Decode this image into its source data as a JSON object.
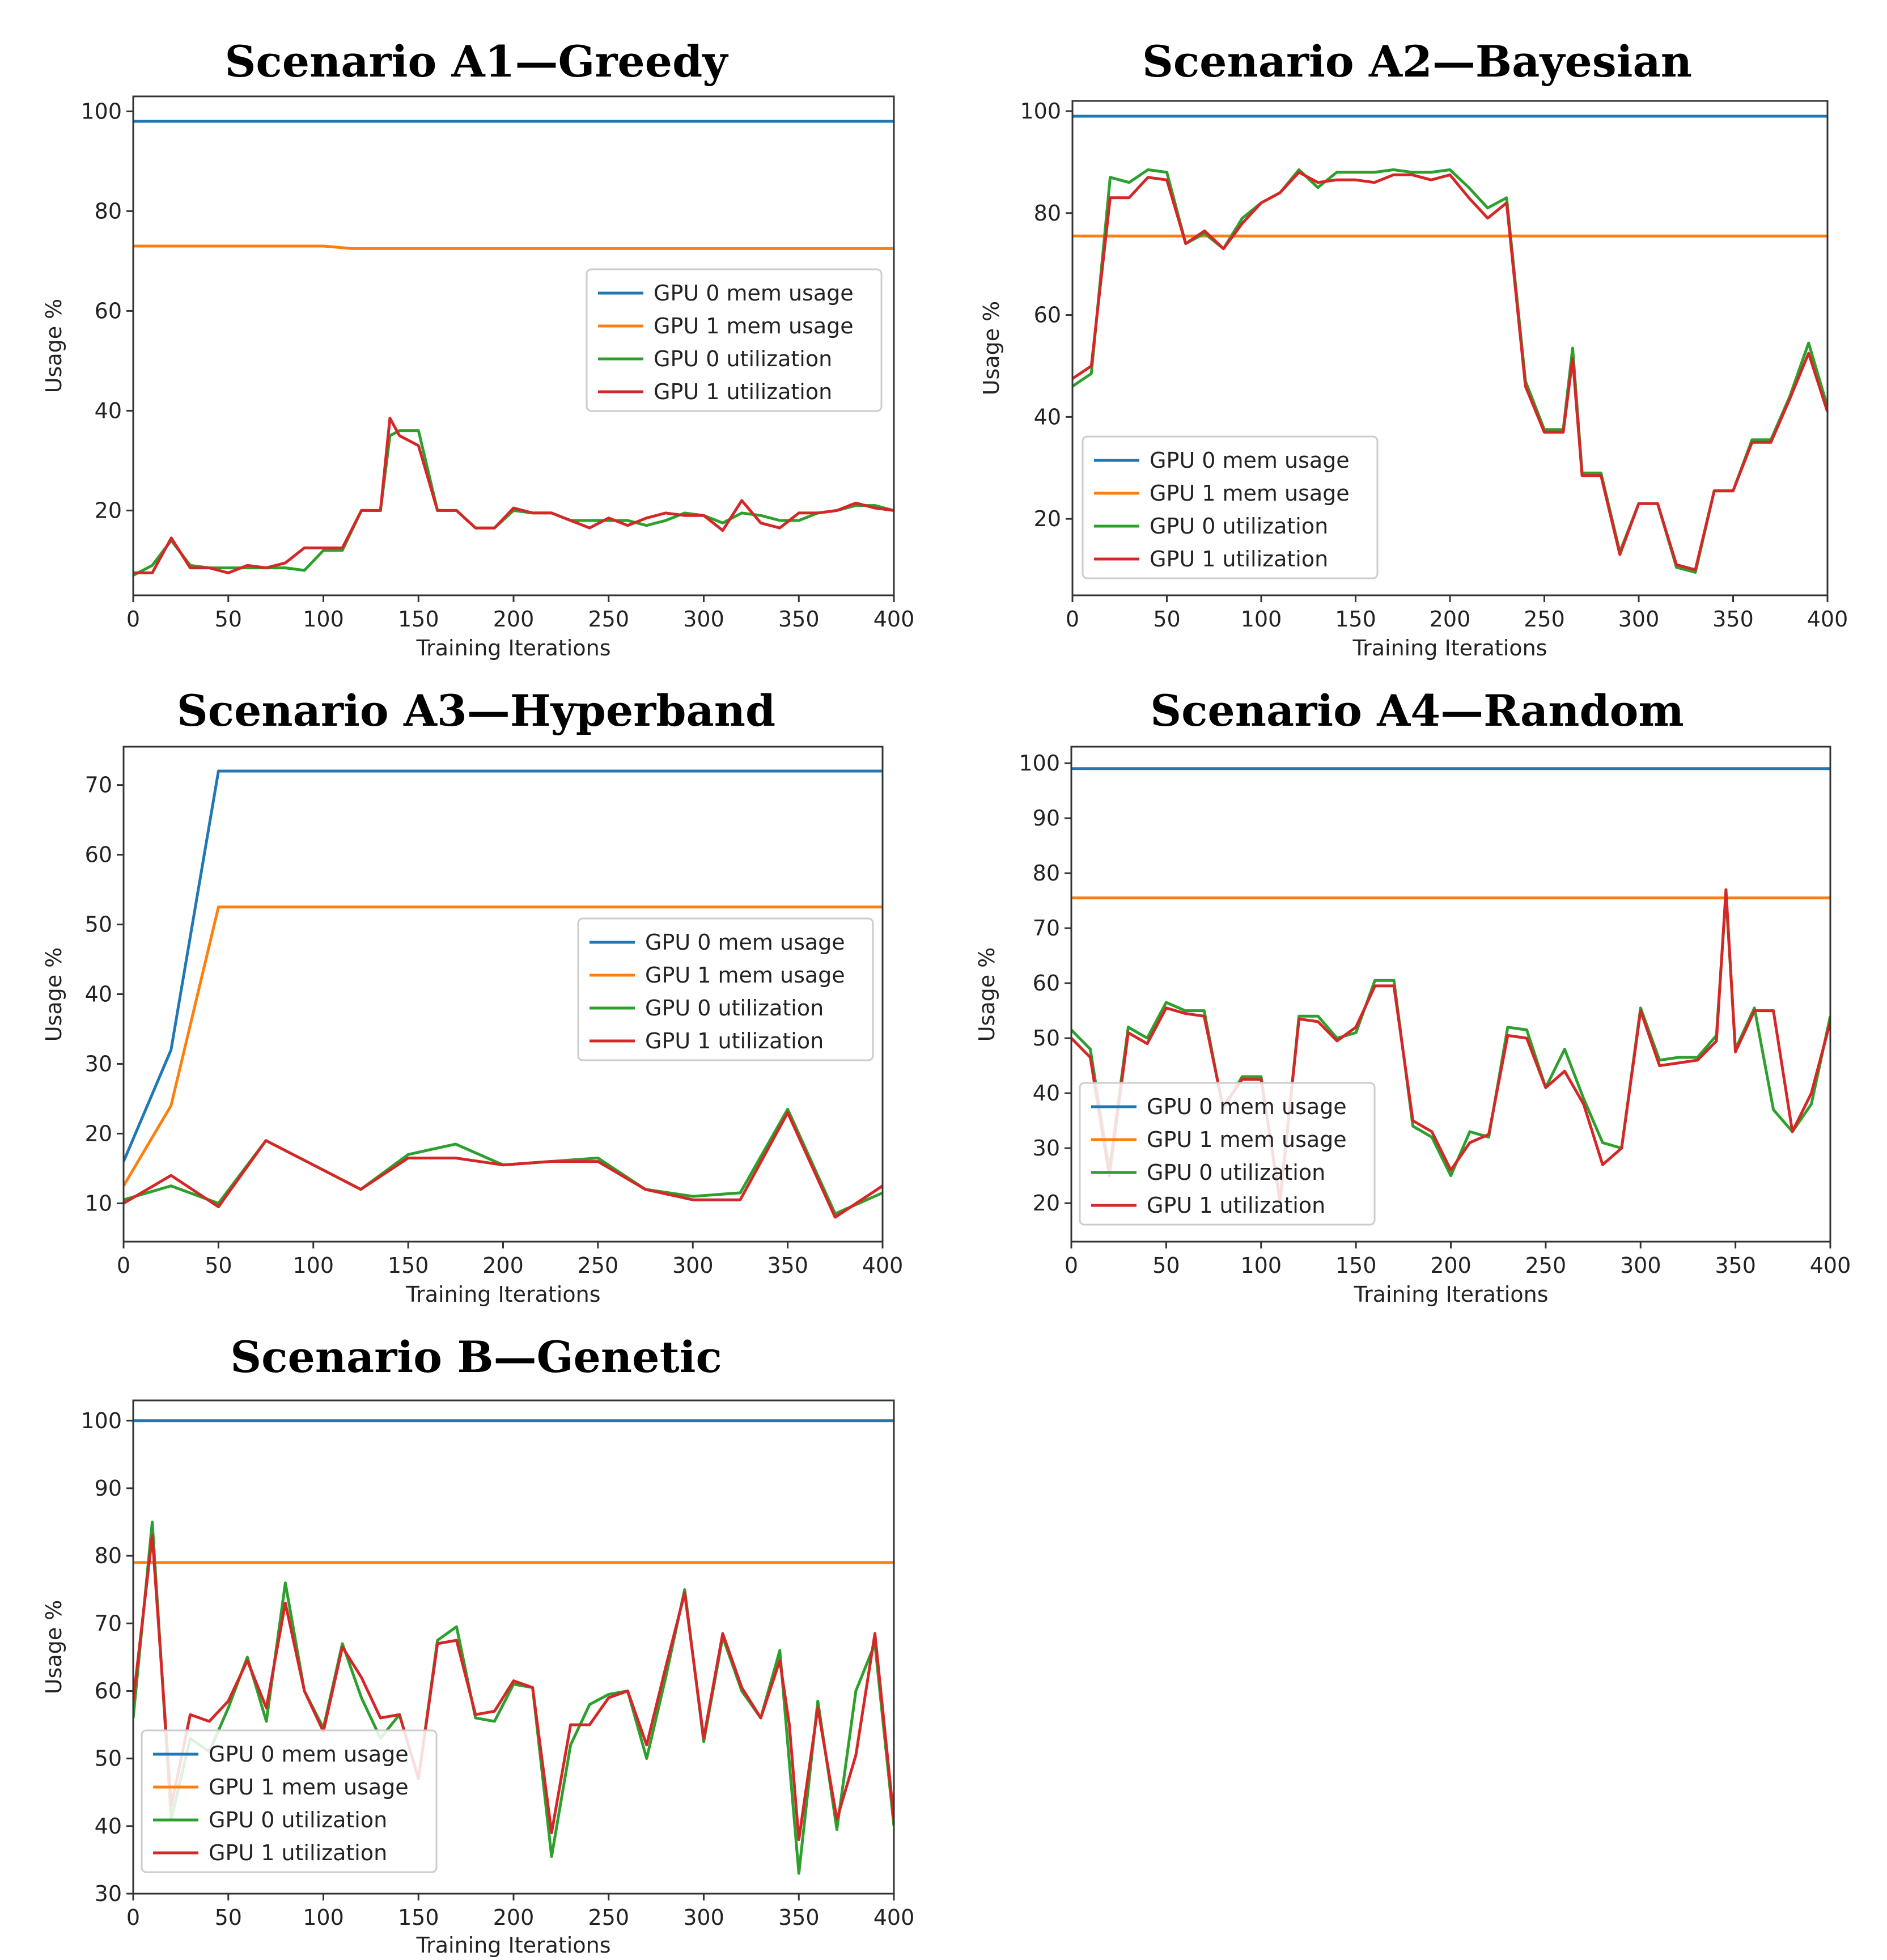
{
  "colors": {
    "gpu0_mem": "#1f77b4",
    "gpu1_mem": "#ff7f0e",
    "gpu0_util": "#2ca02c",
    "gpu1_util": "#d62728"
  },
  "chart_data": [
    {
      "type": "line",
      "title": "Scenario A1—Greedy",
      "xlabel": "Training Iterations",
      "ylabel": "Usage %",
      "xlim": [
        0,
        400
      ],
      "ylim": [
        3,
        103
      ],
      "xticks": [
        0,
        50,
        100,
        150,
        200,
        250,
        300,
        350,
        400
      ],
      "yticks": [
        20,
        40,
        60,
        80,
        100
      ],
      "legend_position": "center-right",
      "series": [
        {
          "name": "GPU 0 mem usage",
          "x": [
            0,
            400
          ],
          "y": [
            98,
            98
          ]
        },
        {
          "name": "GPU 1 mem usage",
          "x": [
            0,
            100,
            115,
            400
          ],
          "y": [
            73,
            73,
            72.5,
            72.5
          ]
        },
        {
          "name": "GPU 0 utilization",
          "x": [
            0,
            10,
            20,
            30,
            40,
            50,
            60,
            70,
            80,
            90,
            100,
            110,
            120,
            130,
            135,
            140,
            150,
            160,
            170,
            180,
            190,
            200,
            210,
            220,
            230,
            240,
            250,
            260,
            270,
            280,
            290,
            300,
            310,
            320,
            330,
            340,
            350,
            360,
            370,
            380,
            390,
            400
          ],
          "y": [
            7,
            9,
            14,
            9,
            8.5,
            8.5,
            8.5,
            8.5,
            8.5,
            8,
            12,
            12,
            20,
            20,
            35,
            36,
            36,
            20,
            20,
            16.5,
            16.5,
            20,
            19.5,
            19.5,
            18,
            18,
            18,
            18,
            17,
            18,
            19.5,
            19,
            17.5,
            19.5,
            19,
            18,
            18,
            19.5,
            20,
            21,
            21,
            20
          ]
        },
        {
          "name": "GPU 1 utilization",
          "x": [
            0,
            10,
            20,
            30,
            40,
            50,
            60,
            70,
            80,
            90,
            100,
            110,
            120,
            130,
            135,
            140,
            150,
            160,
            170,
            180,
            190,
            200,
            210,
            220,
            230,
            240,
            250,
            260,
            270,
            280,
            290,
            300,
            310,
            320,
            330,
            340,
            350,
            360,
            370,
            380,
            390,
            400
          ],
          "y": [
            7.5,
            7.5,
            14.5,
            8.5,
            8.5,
            7.5,
            9,
            8.5,
            9.5,
            12.5,
            12.5,
            12.5,
            20,
            20,
            38.5,
            35,
            33,
            20,
            20,
            16.5,
            16.5,
            20.5,
            19.5,
            19.5,
            18,
            16.5,
            18.5,
            17,
            18.5,
            19.5,
            19,
            19,
            16,
            22,
            17.5,
            16.5,
            19.5,
            19.5,
            20,
            21.5,
            20.5,
            20
          ]
        }
      ]
    },
    {
      "type": "line",
      "title": "Scenario A2—Bayesian",
      "xlabel": "Training Iterations",
      "ylabel": "Usage %",
      "xlim": [
        0,
        400
      ],
      "ylim": [
        5,
        102
      ],
      "xticks": [
        0,
        50,
        100,
        150,
        200,
        250,
        300,
        350,
        400
      ],
      "yticks": [
        20,
        40,
        60,
        80,
        100
      ],
      "legend_position": "lower-left",
      "series": [
        {
          "name": "GPU 0 mem usage",
          "x": [
            0,
            400
          ],
          "y": [
            99,
            99
          ]
        },
        {
          "name": "GPU 1 mem usage",
          "x": [
            0,
            400
          ],
          "y": [
            75.5,
            75.5
          ]
        },
        {
          "name": "GPU 0 utilization",
          "x": [
            0,
            10,
            20,
            30,
            40,
            50,
            60,
            70,
            80,
            90,
            100,
            110,
            120,
            130,
            140,
            150,
            160,
            170,
            180,
            190,
            200,
            210,
            220,
            230,
            240,
            250,
            260,
            265,
            270,
            280,
            290,
            300,
            310,
            320,
            330,
            340,
            350,
            360,
            370,
            380,
            390,
            400
          ],
          "y": [
            46,
            48.5,
            87,
            86,
            88.5,
            88,
            74,
            76,
            73,
            79,
            82,
            84,
            88.5,
            85,
            88,
            88,
            88,
            88.5,
            88,
            88,
            88.5,
            85,
            81,
            83,
            47,
            37.5,
            37.5,
            53.5,
            29,
            29,
            13.5,
            23,
            23,
            10.5,
            9.5,
            25.5,
            25.5,
            35.5,
            35.5,
            44,
            54.5,
            42
          ]
        },
        {
          "name": "GPU 1 utilization",
          "x": [
            0,
            10,
            20,
            30,
            40,
            50,
            60,
            70,
            80,
            90,
            100,
            110,
            120,
            130,
            140,
            150,
            160,
            170,
            180,
            190,
            200,
            210,
            220,
            230,
            240,
            250,
            260,
            265,
            270,
            280,
            290,
            300,
            310,
            320,
            330,
            340,
            350,
            360,
            370,
            380,
            390,
            400
          ],
          "y": [
            47.5,
            50,
            83,
            83,
            87,
            86.5,
            74,
            76.5,
            73,
            78,
            82,
            84,
            88,
            86,
            86.5,
            86.5,
            86,
            87.5,
            87.5,
            86.5,
            87.5,
            83,
            79,
            82,
            46,
            37,
            37,
            51.5,
            28.5,
            28.5,
            13,
            23,
            23,
            11,
            10,
            25.5,
            25.5,
            35,
            35,
            43.5,
            52.5,
            41
          ]
        }
      ]
    },
    {
      "type": "line",
      "title": "Scenario A3—Hyperband",
      "xlabel": "Training Iterations",
      "ylabel": "Usage %",
      "xlim": [
        0,
        400
      ],
      "ylim": [
        4.5,
        75.5
      ],
      "xticks": [
        0,
        50,
        100,
        150,
        200,
        250,
        300,
        350,
        400
      ],
      "yticks": [
        10,
        20,
        30,
        40,
        50,
        60,
        70
      ],
      "legend_position": "center-right",
      "series": [
        {
          "name": "GPU 0 mem usage",
          "x": [
            0,
            25,
            50,
            400
          ],
          "y": [
            16,
            32,
            72,
            72
          ]
        },
        {
          "name": "GPU 1 mem usage",
          "x": [
            0,
            25,
            50,
            400
          ],
          "y": [
            12.5,
            24,
            52.5,
            52.5
          ]
        },
        {
          "name": "GPU 0 utilization",
          "x": [
            0,
            25,
            50,
            75,
            100,
            125,
            150,
            175,
            200,
            225,
            250,
            275,
            300,
            325,
            350,
            375,
            400
          ],
          "y": [
            10.5,
            12.5,
            10,
            19,
            15.5,
            12,
            17,
            18.5,
            15.5,
            16,
            16.5,
            12,
            11,
            11.5,
            23.5,
            8.5,
            11.5
          ]
        },
        {
          "name": "GPU 1 utilization",
          "x": [
            0,
            25,
            50,
            75,
            100,
            125,
            150,
            175,
            200,
            225,
            250,
            275,
            300,
            325,
            350,
            375,
            400
          ],
          "y": [
            10,
            14,
            9.5,
            19,
            15.5,
            12,
            16.5,
            16.5,
            15.5,
            16,
            16,
            12,
            10.5,
            10.5,
            23,
            8,
            12.5
          ]
        }
      ]
    },
    {
      "type": "line",
      "title": "Scenario A4—Random",
      "xlabel": "Training Iterations",
      "ylabel": "Usage %",
      "xlim": [
        0,
        400
      ],
      "ylim": [
        13,
        103
      ],
      "xticks": [
        0,
        50,
        100,
        150,
        200,
        250,
        300,
        350,
        400
      ],
      "yticks": [
        20,
        30,
        40,
        50,
        60,
        70,
        80,
        90,
        100
      ],
      "legend_position": "lower-left",
      "series": [
        {
          "name": "GPU 0 mem usage",
          "x": [
            0,
            400
          ],
          "y": [
            99,
            99
          ]
        },
        {
          "name": "GPU 1 mem usage",
          "x": [
            0,
            400
          ],
          "y": [
            75.5,
            75.5
          ]
        },
        {
          "name": "GPU 0 utilization",
          "x": [
            0,
            10,
            20,
            30,
            40,
            50,
            60,
            70,
            80,
            90,
            100,
            110,
            120,
            130,
            140,
            150,
            160,
            170,
            180,
            190,
            200,
            210,
            220,
            230,
            240,
            250,
            260,
            270,
            280,
            290,
            300,
            310,
            320,
            330,
            340,
            345,
            350,
            360,
            370,
            380,
            390,
            400
          ],
          "y": [
            51.5,
            48,
            26,
            52,
            50,
            56.5,
            55,
            55,
            37,
            43,
            43,
            20,
            54,
            54,
            50,
            51,
            60.5,
            60.5,
            34,
            32,
            25,
            33,
            32,
            52,
            51.5,
            41,
            48,
            39,
            31,
            30,
            55.5,
            46,
            46.5,
            46.5,
            50.5,
            76,
            48,
            55.5,
            37,
            33,
            38,
            54
          ]
        },
        {
          "name": "GPU 1 utilization",
          "x": [
            0,
            10,
            20,
            30,
            40,
            50,
            60,
            70,
            80,
            90,
            100,
            110,
            120,
            130,
            140,
            150,
            160,
            170,
            180,
            190,
            200,
            210,
            220,
            230,
            240,
            250,
            260,
            270,
            280,
            290,
            300,
            310,
            320,
            330,
            340,
            345,
            350,
            360,
            370,
            380,
            390,
            400
          ],
          "y": [
            50,
            46.5,
            25,
            51,
            49,
            55.5,
            54.5,
            54,
            37.5,
            42.5,
            42.5,
            20.5,
            53.5,
            53,
            49.5,
            52,
            59.5,
            59.5,
            35,
            33,
            26,
            31,
            32.5,
            50.5,
            50,
            41,
            44,
            38,
            27,
            30,
            55,
            45,
            45.5,
            46,
            49.5,
            77,
            47.5,
            55,
            55,
            33,
            40,
            53
          ]
        }
      ]
    },
    {
      "type": "line",
      "title": "Scenario B—Genetic",
      "xlabel": "Training Iterations",
      "ylabel": "Usage %",
      "xlim": [
        0,
        400
      ],
      "ylim": [
        30,
        103
      ],
      "xticks": [
        0,
        50,
        100,
        150,
        200,
        250,
        300,
        350,
        400
      ],
      "yticks": [
        30,
        40,
        50,
        60,
        70,
        80,
        90,
        100
      ],
      "legend_position": "lower-left",
      "series": [
        {
          "name": "GPU 0 mem usage",
          "x": [
            0,
            400
          ],
          "y": [
            100,
            100
          ]
        },
        {
          "name": "GPU 1 mem usage",
          "x": [
            0,
            400
          ],
          "y": [
            79,
            79
          ]
        },
        {
          "name": "GPU 0 utilization",
          "x": [
            0,
            10,
            20,
            30,
            40,
            50,
            60,
            70,
            80,
            90,
            100,
            110,
            120,
            130,
            140,
            150,
            160,
            170,
            180,
            190,
            200,
            210,
            220,
            230,
            240,
            250,
            260,
            270,
            280,
            290,
            300,
            310,
            320,
            330,
            340,
            350,
            360,
            370,
            380,
            390,
            400
          ],
          "y": [
            56,
            85,
            41,
            53,
            51,
            57.5,
            65,
            55.5,
            76,
            60,
            54.5,
            67,
            59,
            53,
            56.5,
            47,
            67.5,
            69.5,
            56,
            55.5,
            61,
            60.5,
            35.5,
            52,
            58,
            59.5,
            60,
            50,
            62,
            75,
            52.5,
            68,
            60,
            56,
            66,
            33,
            58.5,
            39.5,
            60,
            67,
            40
          ]
        },
        {
          "name": "GPU 1 utilization",
          "x": [
            0,
            10,
            20,
            30,
            40,
            50,
            60,
            70,
            80,
            90,
            100,
            110,
            120,
            130,
            140,
            150,
            160,
            170,
            180,
            190,
            200,
            210,
            220,
            230,
            240,
            250,
            260,
            270,
            280,
            290,
            300,
            310,
            320,
            330,
            340,
            345,
            350,
            360,
            370,
            380,
            390,
            400
          ],
          "y": [
            58.5,
            83,
            43,
            56.5,
            55.5,
            58.5,
            64.5,
            57.5,
            73,
            60,
            54,
            66.5,
            62,
            56,
            56.5,
            47,
            67,
            67.5,
            56.5,
            57,
            61.5,
            60.5,
            39,
            55,
            55,
            59,
            60,
            52,
            63.5,
            74.5,
            53,
            68.5,
            60.5,
            56,
            64.5,
            55,
            38,
            57.5,
            41,
            50.5,
            68.5,
            41
          ]
        }
      ]
    }
  ]
}
